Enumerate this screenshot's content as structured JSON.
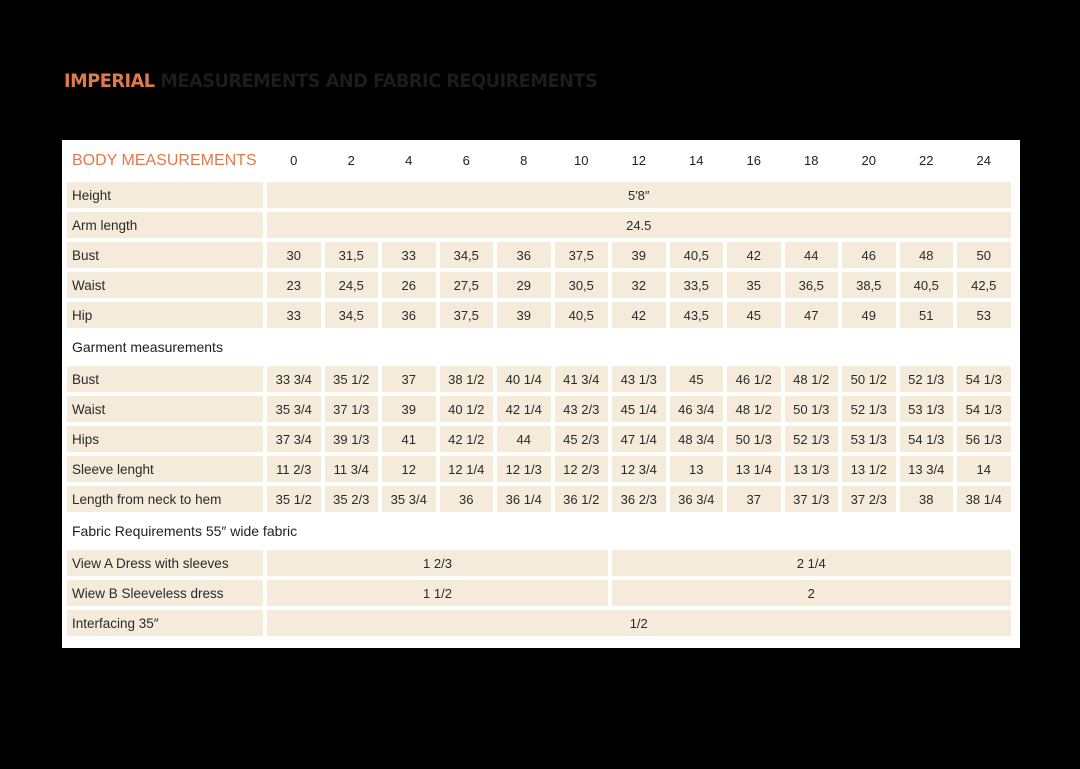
{
  "title": {
    "accent": "Imperial",
    "rest": "Measurements and fabric requirements"
  },
  "colors": {
    "accent": "#e07a4a",
    "cell_bg": "#f4ebdb",
    "panel_bg": "#ffffff",
    "page_bg": "#000000"
  },
  "table": {
    "header_label": "BODY MEASUREMENTS",
    "sizes": [
      "0",
      "2",
      "4",
      "6",
      "8",
      "10",
      "12",
      "14",
      "16",
      "18",
      "20",
      "22",
      "24"
    ],
    "body": {
      "height": {
        "label": "Height",
        "value": "5′8″"
      },
      "arm_length": {
        "label": "Arm length",
        "value": "24.5"
      },
      "rows": [
        {
          "label": "Bust",
          "values": [
            "30",
            "31,5",
            "33",
            "34,5",
            "36",
            "37,5",
            "39",
            "40,5",
            "42",
            "44",
            "46",
            "48",
            "50"
          ]
        },
        {
          "label": "Waist",
          "values": [
            "23",
            "24,5",
            "26",
            "27,5",
            "29",
            "30,5",
            "32",
            "33,5",
            "35",
            "36,5",
            "38,5",
            "40,5",
            "42,5"
          ]
        },
        {
          "label": "Hip",
          "values": [
            "33",
            "34,5",
            "36",
            "37,5",
            "39",
            "40,5",
            "42",
            "43,5",
            "45",
            "47",
            "49",
            "51",
            "53"
          ]
        }
      ]
    },
    "garment": {
      "heading": "Garment measurements",
      "rows": [
        {
          "label": "Bust",
          "values": [
            "33 3/4",
            "35 1/2",
            "37",
            "38 1/2",
            "40 1/4",
            "41 3/4",
            "43 1/3",
            "45",
            "46 1/2",
            "48 1/2",
            "50 1/2",
            "52 1/3",
            "54 1/3"
          ]
        },
        {
          "label": "Waist",
          "values": [
            "35 3/4",
            "37 1/3",
            "39",
            "40 1/2",
            "42 1/4",
            "43 2/3",
            "45 1/4",
            "46 3/4",
            "48 1/2",
            "50 1/3",
            "52 1/3",
            "53 1/3",
            "54 1/3"
          ]
        },
        {
          "label": "Hips",
          "values": [
            "37 3/4",
            "39 1/3",
            "41",
            "42 1/2",
            "44",
            "45 2/3",
            "47 1/4",
            "48 3/4",
            "50 1/3",
            "52 1/3",
            "53 1/3",
            "54 1/3",
            "56 1/3"
          ]
        },
        {
          "label": "Sleeve lenght",
          "values": [
            "11 2/3",
            "11 3/4",
            "12",
            "12 1/4",
            "12 1/3",
            "12 2/3",
            "12 3/4",
            "13",
            "13 1/4",
            "13 1/3",
            "13 1/2",
            "13 3/4",
            "14"
          ]
        },
        {
          "label": "Length from neck to hem",
          "values": [
            "35 1/2",
            "35 2/3",
            "35 3/4",
            "36",
            "36 1/4",
            "36 1/2",
            "36 2/3",
            "36 3/4",
            "37",
            "37 1/3",
            "37 2/3",
            "38",
            "38 1/4"
          ]
        }
      ]
    },
    "fabric": {
      "heading": "Fabric Requirements 55″ wide fabric",
      "view_a": {
        "label": "View A Dress with sleeves",
        "sizes_0_10": "1 2/3",
        "sizes_12_24": "2 1/4"
      },
      "view_b": {
        "label": "Wiew B Sleeveless dress",
        "sizes_0_10": "1 1/2",
        "sizes_12_24": "2"
      },
      "interfacing": {
        "label": "Interfacing 35″",
        "value": "1/2"
      }
    }
  }
}
